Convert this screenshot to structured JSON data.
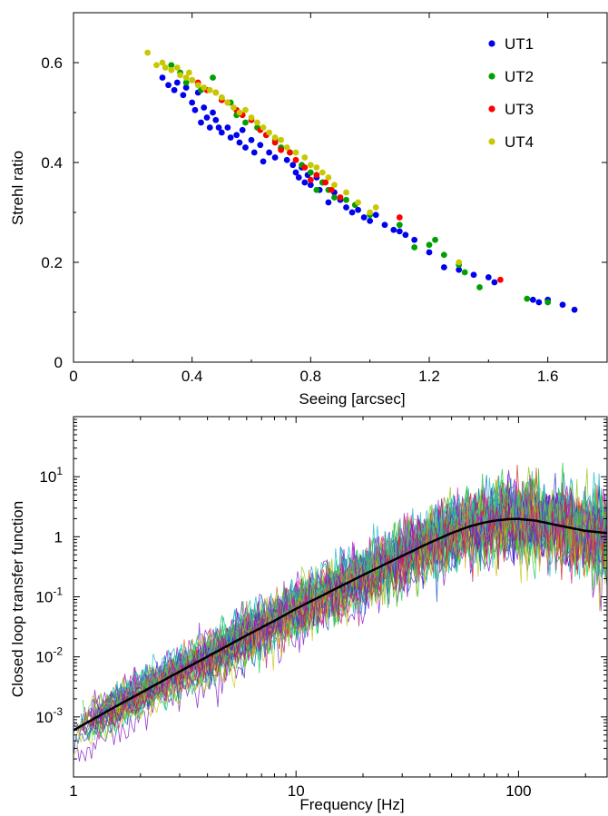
{
  "colors": {
    "UT1": "#0000ee",
    "UT2": "#00a000",
    "UT3": "#ff0000",
    "UT4": "#c8c800",
    "mean_curve": "#000000",
    "axis": "#000000",
    "background": "#ffffff"
  },
  "chart_data": [
    {
      "type": "scatter",
      "title": "",
      "xlabel": "Seeing [arcsec]",
      "ylabel": "Strehl ratio",
      "xlim": [
        0,
        1.8
      ],
      "ylim": [
        0,
        0.7
      ],
      "x_ticks": [
        {
          "value": 0,
          "label": "0"
        },
        {
          "value": 0.4,
          "label": "0.4"
        },
        {
          "value": 0.8,
          "label": "0.8"
        },
        {
          "value": 1.2,
          "label": "1.2"
        },
        {
          "value": 1.6,
          "label": "1.6"
        }
      ],
      "y_ticks": [
        {
          "value": 0,
          "label": "0"
        },
        {
          "value": 0.2,
          "label": "0.2"
        },
        {
          "value": 0.4,
          "label": "0.4"
        },
        {
          "value": 0.6,
          "label": "0.6"
        }
      ],
      "grid": false,
      "legend_position": "top-right",
      "series": [
        {
          "name": "UT1",
          "color_key": "UT1",
          "points": [
            [
              0.3,
              0.57
            ],
            [
              0.32,
              0.555
            ],
            [
              0.34,
              0.545
            ],
            [
              0.35,
              0.56
            ],
            [
              0.37,
              0.535
            ],
            [
              0.38,
              0.55
            ],
            [
              0.4,
              0.52
            ],
            [
              0.41,
              0.505
            ],
            [
              0.42,
              0.54
            ],
            [
              0.43,
              0.48
            ],
            [
              0.44,
              0.51
            ],
            [
              0.45,
              0.49
            ],
            [
              0.46,
              0.47
            ],
            [
              0.47,
              0.5
            ],
            [
              0.48,
              0.485
            ],
            [
              0.49,
              0.47
            ],
            [
              0.5,
              0.46
            ],
            [
              0.52,
              0.47
            ],
            [
              0.53,
              0.45
            ],
            [
              0.55,
              0.455
            ],
            [
              0.56,
              0.44
            ],
            [
              0.57,
              0.465
            ],
            [
              0.58,
              0.43
            ],
            [
              0.6,
              0.445
            ],
            [
              0.61,
              0.42
            ],
            [
              0.63,
              0.435
            ],
            [
              0.64,
              0.402
            ],
            [
              0.66,
              0.42
            ],
            [
              0.68,
              0.41
            ],
            [
              0.7,
              0.428
            ],
            [
              0.72,
              0.405
            ],
            [
              0.74,
              0.395
            ],
            [
              0.75,
              0.38
            ],
            [
              0.76,
              0.37
            ],
            [
              0.77,
              0.39
            ],
            [
              0.78,
              0.36
            ],
            [
              0.79,
              0.375
            ],
            [
              0.8,
              0.355
            ],
            [
              0.82,
              0.37
            ],
            [
              0.83,
              0.345
            ],
            [
              0.84,
              0.36
            ],
            [
              0.86,
              0.32
            ],
            [
              0.88,
              0.34
            ],
            [
              0.9,
              0.325
            ],
            [
              0.92,
              0.31
            ],
            [
              0.94,
              0.3
            ],
            [
              0.96,
              0.305
            ],
            [
              0.98,
              0.29
            ],
            [
              1.0,
              0.283
            ],
            [
              1.02,
              0.295
            ],
            [
              1.05,
              0.275
            ],
            [
              1.08,
              0.265
            ],
            [
              1.1,
              0.262
            ],
            [
              1.12,
              0.255
            ],
            [
              1.15,
              0.245
            ],
            [
              1.2,
              0.22
            ],
            [
              1.25,
              0.19
            ],
            [
              1.3,
              0.185
            ],
            [
              1.35,
              0.175
            ],
            [
              1.4,
              0.17
            ],
            [
              1.42,
              0.16
            ],
            [
              1.55,
              0.125
            ],
            [
              1.57,
              0.12
            ],
            [
              1.6,
              0.125
            ],
            [
              1.65,
              0.115
            ],
            [
              1.69,
              0.105
            ]
          ]
        },
        {
          "name": "UT2",
          "color_key": "UT2",
          "points": [
            [
              0.33,
              0.595
            ],
            [
              0.36,
              0.58
            ],
            [
              0.38,
              0.56
            ],
            [
              0.4,
              0.565
            ],
            [
              0.43,
              0.545
            ],
            [
              0.47,
              0.57
            ],
            [
              0.5,
              0.53
            ],
            [
              0.53,
              0.52
            ],
            [
              0.55,
              0.495
            ],
            [
              0.58,
              0.48
            ],
            [
              0.62,
              0.47
            ],
            [
              0.65,
              0.455
            ],
            [
              0.68,
              0.445
            ],
            [
              0.7,
              0.43
            ],
            [
              0.73,
              0.42
            ],
            [
              0.77,
              0.395
            ],
            [
              0.8,
              0.38
            ],
            [
              0.82,
              0.345
            ],
            [
              0.84,
              0.36
            ],
            [
              0.86,
              0.345
            ],
            [
              0.88,
              0.33
            ],
            [
              0.92,
              0.325
            ],
            [
              0.95,
              0.315
            ],
            [
              1.0,
              0.295
            ],
            [
              1.1,
              0.275
            ],
            [
              1.15,
              0.23
            ],
            [
              1.2,
              0.235
            ],
            [
              1.22,
              0.245
            ],
            [
              1.25,
              0.215
            ],
            [
              1.3,
              0.195
            ],
            [
              1.32,
              0.18
            ],
            [
              1.37,
              0.15
            ],
            [
              1.53,
              0.127
            ],
            [
              1.6,
              0.12
            ]
          ]
        },
        {
          "name": "UT3",
          "color_key": "UT3",
          "points": [
            [
              0.42,
              0.56
            ],
            [
              0.45,
              0.545
            ],
            [
              0.48,
              0.54
            ],
            [
              0.5,
              0.525
            ],
            [
              0.52,
              0.52
            ],
            [
              0.55,
              0.505
            ],
            [
              0.57,
              0.495
            ],
            [
              0.6,
              0.485
            ],
            [
              0.63,
              0.465
            ],
            [
              0.65,
              0.455
            ],
            [
              0.68,
              0.44
            ],
            [
              0.7,
              0.425
            ],
            [
              0.73,
              0.42
            ],
            [
              0.75,
              0.405
            ],
            [
              0.78,
              0.39
            ],
            [
              0.8,
              0.365
            ],
            [
              0.82,
              0.375
            ],
            [
              0.85,
              0.36
            ],
            [
              0.87,
              0.345
            ],
            [
              0.9,
              0.33
            ],
            [
              1.1,
              0.29
            ],
            [
              1.44,
              0.165
            ]
          ]
        },
        {
          "name": "UT4",
          "color_key": "UT4",
          "points": [
            [
              0.25,
              0.62
            ],
            [
              0.28,
              0.595
            ],
            [
              0.3,
              0.6
            ],
            [
              0.31,
              0.59
            ],
            [
              0.33,
              0.585
            ],
            [
              0.35,
              0.59
            ],
            [
              0.36,
              0.575
            ],
            [
              0.38,
              0.57
            ],
            [
              0.39,
              0.58
            ],
            [
              0.4,
              0.565
            ],
            [
              0.42,
              0.555
            ],
            [
              0.44,
              0.55
            ],
            [
              0.46,
              0.545
            ],
            [
              0.48,
              0.54
            ],
            [
              0.5,
              0.53
            ],
            [
              0.52,
              0.52
            ],
            [
              0.54,
              0.51
            ],
            [
              0.56,
              0.5
            ],
            [
              0.58,
              0.505
            ],
            [
              0.6,
              0.49
            ],
            [
              0.62,
              0.48
            ],
            [
              0.64,
              0.47
            ],
            [
              0.66,
              0.46
            ],
            [
              0.68,
              0.45
            ],
            [
              0.7,
              0.445
            ],
            [
              0.72,
              0.43
            ],
            [
              0.75,
              0.42
            ],
            [
              0.78,
              0.41
            ],
            [
              0.8,
              0.395
            ],
            [
              0.82,
              0.39
            ],
            [
              0.84,
              0.38
            ],
            [
              0.86,
              0.37
            ],
            [
              0.88,
              0.355
            ],
            [
              0.92,
              0.34
            ],
            [
              0.96,
              0.32
            ],
            [
              1.0,
              0.3
            ],
            [
              1.02,
              0.31
            ],
            [
              1.3,
              0.2
            ]
          ]
        }
      ]
    },
    {
      "type": "line",
      "title": "",
      "xlabel": "Frequency [Hz]",
      "ylabel": "Closed loop transfer function",
      "x_scale": "log",
      "y_scale": "log",
      "xlim": [
        1,
        250
      ],
      "ylim": [
        0.0001,
        100
      ],
      "x_ticks": [
        {
          "value": 1,
          "label": "1"
        },
        {
          "value": 10,
          "label": "10"
        },
        {
          "value": 100,
          "label": "100"
        }
      ],
      "y_ticks": [
        {
          "value": 0.001,
          "base": "10",
          "exp": "-3"
        },
        {
          "value": 0.01,
          "base": "10",
          "exp": "-2"
        },
        {
          "value": 0.1,
          "base": "10",
          "exp": "-1"
        },
        {
          "value": 1,
          "base": "1",
          "exp": ""
        },
        {
          "value": 10,
          "base": "10",
          "exp": "1"
        }
      ],
      "grid": false,
      "mean_curve": {
        "frequency": [
          1,
          1.5,
          2,
          3,
          4,
          5,
          6,
          8,
          10,
          15,
          20,
          30,
          40,
          50,
          60,
          70,
          80,
          90,
          100,
          120,
          150,
          200,
          250
        ],
        "value": [
          0.0006,
          0.0014,
          0.0025,
          0.0057,
          0.0101,
          0.0158,
          0.0228,
          0.04,
          0.063,
          0.135,
          0.23,
          0.48,
          0.8,
          1.15,
          1.48,
          1.72,
          1.88,
          1.96,
          1.98,
          1.85,
          1.55,
          1.25,
          1.15
        ]
      },
      "trace_envelope": {
        "count": 40,
        "frequency_range": [
          1,
          250
        ],
        "scatter_factor_low_freq": 2.0,
        "scatter_factor_high_freq": 3.0
      }
    }
  ]
}
